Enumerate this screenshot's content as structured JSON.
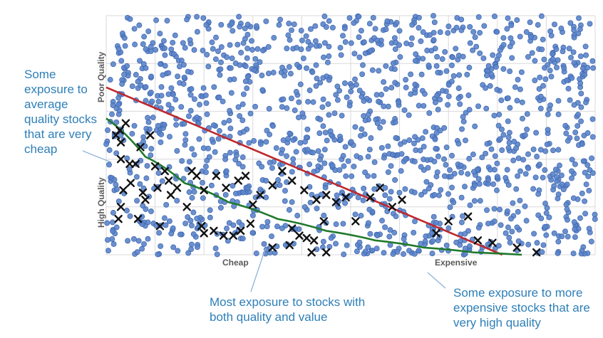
{
  "chart_data": {
    "type": "scatter",
    "title": "",
    "x_axis": {
      "tick_labels": [
        "Cheap",
        "Expensive"
      ],
      "direction": "cheap to expensive"
    },
    "y_axis": {
      "tick_labels": [
        "High Quality",
        "Poor Quality"
      ],
      "direction": "high quality (bottom) to poor quality (top)"
    },
    "grid": true,
    "xlim": [
      0,
      100
    ],
    "ylim": [
      0,
      100
    ],
    "universe_points": {
      "count": 1500,
      "color": "#5b84c9",
      "edge_color": "#3a63b0",
      "marker": "circle",
      "distribution": "uniform random over the full plot area"
    },
    "selected_points": {
      "marker": "x",
      "color": "#111111",
      "points": [
        [
          2,
          50
        ],
        [
          3,
          40
        ],
        [
          4,
          55
        ],
        [
          3,
          47
        ],
        [
          2.8,
          52
        ],
        [
          4.8,
          38
        ],
        [
          6,
          38
        ],
        [
          7.5,
          26
        ],
        [
          3.5,
          27
        ],
        [
          5,
          30
        ],
        [
          3,
          20
        ],
        [
          6.5,
          15
        ],
        [
          2.5,
          15
        ],
        [
          7,
          45
        ],
        [
          9,
          50
        ],
        [
          10,
          37
        ],
        [
          11,
          12
        ],
        [
          12,
          35
        ],
        [
          8,
          23
        ],
        [
          10.5,
          28
        ],
        [
          12.8,
          31
        ],
        [
          13.2,
          25
        ],
        [
          14.5,
          28
        ],
        [
          16.5,
          20
        ],
        [
          17.5,
          35
        ],
        [
          18.5,
          33
        ],
        [
          20,
          27
        ],
        [
          22.5,
          33
        ],
        [
          24.5,
          28
        ],
        [
          27,
          31
        ],
        [
          28.5,
          33
        ],
        [
          31.5,
          25
        ],
        [
          30,
          21
        ],
        [
          34,
          29
        ],
        [
          36,
          35
        ],
        [
          38,
          31
        ],
        [
          43,
          23
        ],
        [
          45,
          25
        ],
        [
          40.5,
          27
        ],
        [
          47,
          22
        ],
        [
          49,
          24
        ],
        [
          51,
          14
        ],
        [
          54,
          24
        ],
        [
          56,
          28
        ],
        [
          58.5,
          20
        ],
        [
          60.5,
          23
        ],
        [
          67.5,
          9
        ],
        [
          70,
          14
        ],
        [
          74,
          16
        ],
        [
          76,
          6
        ],
        [
          79,
          5
        ],
        [
          84,
          3
        ],
        [
          88,
          1
        ],
        [
          19.5,
          12
        ],
        [
          22,
          10
        ],
        [
          20,
          9
        ],
        [
          24,
          8
        ],
        [
          26,
          8
        ],
        [
          27.5,
          10
        ],
        [
          29.5,
          13
        ],
        [
          39.5,
          8
        ],
        [
          41,
          7
        ],
        [
          44.5,
          14
        ],
        [
          38,
          11
        ],
        [
          37.5,
          4
        ],
        [
          42,
          1
        ],
        [
          45,
          1
        ],
        [
          42.5,
          6
        ],
        [
          34,
          3
        ]
      ]
    },
    "curves": [
      {
        "name": "",
        "color": "#c0282d",
        "shape": "straight line",
        "points": [
          [
            0,
            70
          ],
          [
            81,
            0
          ]
        ]
      },
      {
        "name": "",
        "color": "#1f7a2c",
        "shape": "decaying curve",
        "points": [
          [
            0,
            57
          ],
          [
            8,
            41
          ],
          [
            16,
            30
          ],
          [
            25,
            22
          ],
          [
            35,
            15
          ],
          [
            45,
            10
          ],
          [
            55,
            6
          ],
          [
            65,
            3
          ],
          [
            75,
            1
          ],
          [
            85,
            0
          ]
        ]
      }
    ]
  },
  "annotations": {
    "left": "Some exposure to average quality stocks that are very cheap",
    "bottom": "Most exposure to stocks with both quality and value",
    "right": "Some exposure to more expensive stocks that are very high quality"
  },
  "axis_text": {
    "x_left": "Cheap",
    "x_right": "Expensive",
    "y_top": "Poor Quality",
    "y_bottom": "High Quality"
  },
  "colors": {
    "annotation_text": "#2e7fb8",
    "callout_line": "#8fb4d8",
    "axis_text": "#595959",
    "gridline": "#d9d9d9"
  }
}
